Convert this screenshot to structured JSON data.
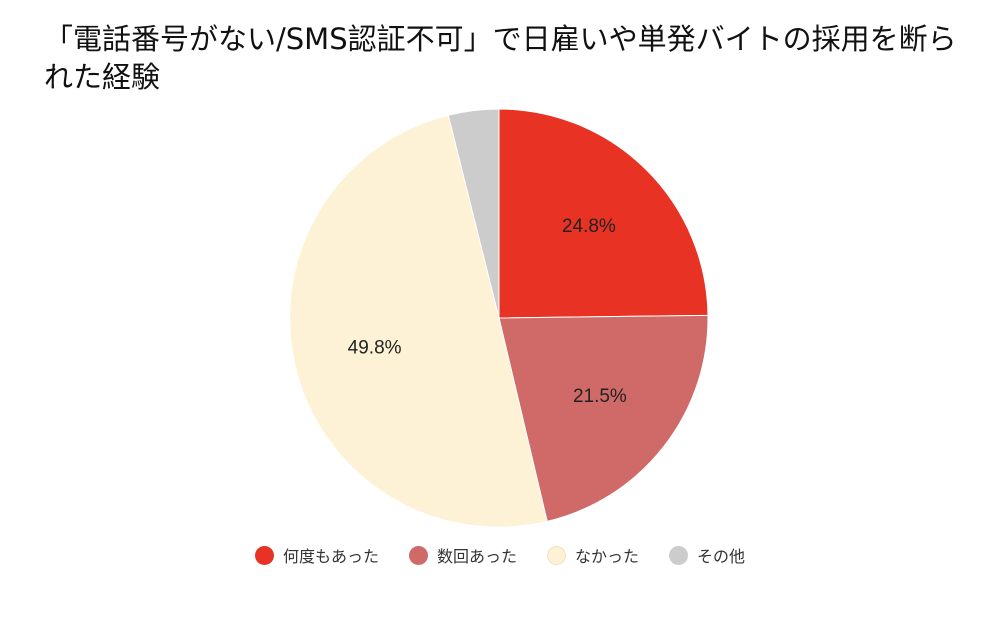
{
  "chart_data": {
    "type": "pie",
    "title": "「電話番号がない/SMS認証不可」で日雇いや単発バイトの採用を断られた経験",
    "categories": [
      "何度もあった",
      "数回あった",
      "なかった",
      "その他"
    ],
    "values": [
      24.8,
      21.5,
      49.8,
      3.9
    ],
    "labels": [
      "24.8%",
      "21.5%",
      "49.8%",
      ""
    ],
    "colors": [
      "#e83223",
      "#d06a68",
      "#fdf2d5",
      "#cccccc"
    ],
    "legend_position": "bottom",
    "start_angle": "12 o'clock",
    "direction": "clockwise"
  }
}
